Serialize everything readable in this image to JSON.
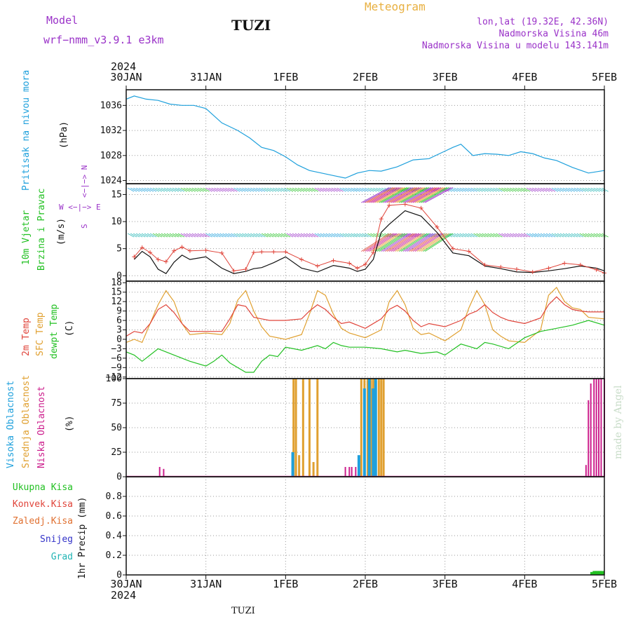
{
  "header": {
    "model_label": "Model",
    "model_name": "wrf−nmm_v3.9.1  e3km",
    "station": "TUZI",
    "title": "Meteogram",
    "coords": "lon,lat (19.32E, 42.36N)",
    "altitude": "Nadmorska Visina 46m",
    "model_altitude": "Nadmorska Visina u modelu 143.141m",
    "credit": "made by Angel",
    "footer_station": "TUZI"
  },
  "time_axis": {
    "year": "2024",
    "ticks": [
      "30JAN",
      "31JAN",
      "1FEB",
      "2FEB",
      "3FEB",
      "4FEB",
      "5FEB"
    ],
    "range_days": [
      0,
      6
    ]
  },
  "colors": {
    "pressure": "#1ea0dc",
    "temp2m": "#e0443a",
    "sfc_temp": "#e0a030",
    "dewpoint": "#22c022",
    "wind_speed": "#111111",
    "wind_gust": "#e0443a",
    "high_cloud": "#1ea0dc",
    "mid_cloud": "#e0a030",
    "low_cloud": "#cc1e8c",
    "precip": "#22c022",
    "grid": "#9a9a9a",
    "label_purple": "#9a32c8",
    "label_gold": "#e8b040"
  },
  "panels": [
    {
      "id": "pressure",
      "labels": [
        "Pritisak na nivou mora"
      ],
      "label_colors": [
        "#1ea0dc"
      ],
      "unit": "(hPa)",
      "ticks": [
        "1036",
        "1032",
        "1028",
        "1024"
      ]
    },
    {
      "id": "wind",
      "labels": [
        "10m Vjetar",
        "Brzina i Pravac"
      ],
      "label_colors": [
        "#22c022",
        "#22c022"
      ],
      "unit": "(m/s)",
      "ticks": [
        "15",
        "10",
        "5",
        "0"
      ],
      "compass": {
        "n": "N",
        "e": "E",
        "w": "W",
        "s": "S",
        "arrow": "<−|−>"
      }
    },
    {
      "id": "temp",
      "labels": [
        "2m Temp",
        "SFC Temp",
        "dewpt Temp"
      ],
      "label_colors": [
        "#e0443a",
        "#e0a030",
        "#22c022"
      ],
      "unit": "(C)",
      "ticks": [
        "18",
        "15",
        "12",
        "9",
        "6",
        "3",
        "0",
        "−3",
        "−6",
        "−9",
        "−12"
      ]
    },
    {
      "id": "cloud",
      "labels": [
        "Visoka Oblacnost",
        "Srednja Oblacnost",
        "Niska Oblacnost"
      ],
      "label_colors": [
        "#1ea0dc",
        "#e0a030",
        "#cc1e8c"
      ],
      "unit": "(%)",
      "ticks": [
        "100",
        "75",
        "50",
        "25",
        "0"
      ]
    },
    {
      "id": "precip",
      "unit": "1hr Precip (mm)",
      "ticks": [
        "0.8",
        "0.6",
        "0.4",
        "0.2",
        "0"
      ],
      "legend": [
        {
          "label": "Ukupna Kisa",
          "color": "#22c022"
        },
        {
          "label": "Konvek.Kisa",
          "color": "#e0443a"
        },
        {
          "label": "Zaledj.Kisa",
          "color": "#e07030"
        },
        {
          "label": "Snijeg",
          "color": "#3232c8"
        },
        {
          "label": "Grad",
          "color": "#20b4b4"
        }
      ]
    }
  ],
  "chart_data": [
    {
      "type": "line",
      "panel": "pressure",
      "x_unit": "days since 30JAN 00UTC",
      "ylim": [
        1023.5,
        1038.5
      ],
      "series": [
        {
          "name": "Pritisak na nivou mora",
          "x": [
            0,
            0.1,
            0.25,
            0.4,
            0.55,
            0.7,
            0.85,
            1.0,
            1.2,
            1.4,
            1.55,
            1.7,
            1.85,
            2.0,
            2.15,
            2.3,
            2.45,
            2.6,
            2.75,
            2.9,
            3.05,
            3.2,
            3.4,
            3.6,
            3.8,
            4.0,
            4.1,
            4.2,
            4.35,
            4.5,
            4.65,
            4.8,
            4.95,
            5.1,
            5.25,
            5.4,
            5.6,
            5.8,
            6.0
          ],
          "y": [
            1037.0,
            1037.5,
            1037.0,
            1036.8,
            1036.2,
            1036.0,
            1036.0,
            1035.5,
            1033.2,
            1032.0,
            1030.8,
            1029.3,
            1028.8,
            1027.8,
            1026.5,
            1025.6,
            1025.2,
            1024.8,
            1024.4,
            1025.2,
            1025.6,
            1025.5,
            1026.2,
            1027.3,
            1027.5,
            1028.7,
            1029.3,
            1029.8,
            1028.0,
            1028.3,
            1028.2,
            1028.0,
            1028.6,
            1028.3,
            1027.6,
            1027.2,
            1026.1,
            1025.2,
            1025.6
          ]
        }
      ]
    },
    {
      "type": "line",
      "panel": "wind",
      "ylim": [
        -1,
        17
      ],
      "series": [
        {
          "name": "speed",
          "x": [
            0.1,
            0.2,
            0.3,
            0.4,
            0.5,
            0.6,
            0.7,
            0.8,
            1.0,
            1.2,
            1.35,
            1.5,
            1.6,
            1.7,
            1.85,
            2.0,
            2.2,
            2.4,
            2.6,
            2.8,
            2.9,
            3.0,
            3.1,
            3.2,
            3.3,
            3.5,
            3.7,
            3.9,
            4.1,
            4.3,
            4.5,
            4.7,
            4.9,
            5.1,
            5.3,
            5.5,
            5.7,
            5.9,
            6.0
          ],
          "y": [
            3.0,
            4.5,
            3.5,
            1.2,
            0.4,
            2.5,
            3.8,
            3.0,
            3.5,
            1.4,
            0.4,
            0.8,
            1.3,
            1.5,
            2.4,
            3.5,
            1.4,
            0.7,
            1.9,
            1.4,
            0.8,
            1.2,
            3.0,
            8.0,
            9.5,
            12.0,
            11.0,
            8.0,
            4.2,
            3.7,
            1.8,
            1.3,
            0.7,
            0.6,
            0.9,
            1.3,
            1.8,
            1.4,
            0.9
          ]
        },
        {
          "name": "gust",
          "x": [
            0.1,
            0.2,
            0.3,
            0.4,
            0.5,
            0.6,
            0.7,
            0.8,
            1.0,
            1.2,
            1.35,
            1.5,
            1.6,
            1.7,
            1.85,
            2.0,
            2.2,
            2.4,
            2.6,
            2.8,
            2.9,
            3.0,
            3.1,
            3.2,
            3.3,
            3.5,
            3.7,
            3.9,
            4.1,
            4.3,
            4.5,
            4.7,
            4.9,
            5.1,
            5.3,
            5.5,
            5.7,
            5.9,
            6.0
          ],
          "y": [
            3.5,
            5.2,
            4.3,
            3.0,
            2.6,
            4.6,
            5.3,
            4.6,
            4.7,
            4.2,
            0.9,
            1.2,
            4.3,
            4.4,
            4.4,
            4.4,
            3.0,
            1.8,
            2.8,
            2.3,
            1.4,
            2.1,
            4.3,
            10.5,
            13.0,
            13.2,
            12.5,
            9.0,
            5.0,
            4.5,
            2.0,
            1.6,
            1.2,
            0.7,
            1.4,
            2.3,
            2.0,
            1.1,
            0.5
          ]
        }
      ]
    },
    {
      "type": "line",
      "panel": "temp",
      "ylim": [
        -12.5,
        18.5
      ],
      "series": [
        {
          "name": "2m Temp",
          "x": [
            0,
            0.1,
            0.2,
            0.3,
            0.4,
            0.5,
            0.6,
            0.7,
            0.8,
            1.0,
            1.2,
            1.3,
            1.4,
            1.5,
            1.6,
            1.7,
            1.8,
            2.0,
            2.2,
            2.3,
            2.4,
            2.5,
            2.6,
            2.7,
            2.8,
            3.0,
            3.2,
            3.3,
            3.4,
            3.5,
            3.6,
            3.7,
            3.8,
            4.0,
            4.2,
            4.3,
            4.4,
            4.5,
            4.6,
            4.7,
            4.8,
            5.0,
            5.2,
            5.3,
            5.4,
            5.5,
            5.6,
            5.7,
            5.8,
            6.0
          ],
          "y": [
            1.0,
            2.5,
            2.0,
            5.0,
            9.5,
            11.0,
            8.5,
            5.0,
            2.5,
            2.5,
            2.5,
            6.5,
            11.0,
            10.5,
            7.0,
            6.5,
            6.0,
            6.0,
            6.5,
            9.0,
            11.0,
            9.5,
            7.0,
            5.0,
            5.5,
            3.5,
            6.5,
            9.5,
            10.8,
            9.0,
            6.0,
            4.0,
            5.0,
            4.0,
            6.0,
            8.0,
            9.0,
            11.0,
            8.5,
            7.0,
            6.0,
            5.0,
            6.8,
            11.0,
            13.5,
            11.0,
            9.5,
            9.0,
            8.7,
            8.7
          ]
        },
        {
          "name": "SFC Temp",
          "x": [
            0,
            0.1,
            0.2,
            0.3,
            0.4,
            0.5,
            0.6,
            0.7,
            0.8,
            1.0,
            1.2,
            1.3,
            1.4,
            1.5,
            1.6,
            1.7,
            1.8,
            2.0,
            2.2,
            2.3,
            2.4,
            2.5,
            2.6,
            2.7,
            2.8,
            3.0,
            3.2,
            3.3,
            3.4,
            3.5,
            3.6,
            3.7,
            3.8,
            4.0,
            4.2,
            4.3,
            4.4,
            4.5,
            4.6,
            4.7,
            4.8,
            5.0,
            5.2,
            5.3,
            5.4,
            5.5,
            5.6,
            5.7,
            5.8,
            6.0
          ],
          "y": [
            -1.0,
            0.0,
            -1.0,
            5.0,
            11.0,
            15.5,
            12.0,
            5.0,
            1.5,
            2.0,
            1.5,
            5.0,
            12.5,
            15.5,
            9.0,
            4.0,
            1.0,
            0.0,
            1.5,
            8.0,
            15.5,
            14.0,
            8.0,
            3.5,
            2.0,
            0.5,
            3.0,
            12.0,
            15.5,
            11.0,
            3.5,
            1.5,
            2.0,
            -0.5,
            3.0,
            10.0,
            15.5,
            11.0,
            3.0,
            1.0,
            -0.5,
            -1.0,
            3.0,
            14.0,
            16.5,
            12.0,
            10.0,
            9.5,
            7.0,
            6.5
          ]
        },
        {
          "name": "dewpt Temp",
          "x": [
            0,
            0.1,
            0.2,
            0.3,
            0.4,
            0.5,
            0.6,
            0.7,
            0.8,
            1.0,
            1.1,
            1.2,
            1.3,
            1.5,
            1.6,
            1.7,
            1.8,
            1.9,
            2.0,
            2.2,
            2.4,
            2.5,
            2.6,
            2.7,
            2.8,
            3.0,
            3.2,
            3.4,
            3.5,
            3.7,
            3.9,
            4.0,
            4.2,
            4.4,
            4.5,
            4.6,
            4.8,
            5.0,
            5.2,
            5.4,
            5.6,
            5.8,
            6.0
          ],
          "y": [
            -4.0,
            -5.0,
            -7.0,
            -5.0,
            -3.0,
            -4.0,
            -5.0,
            -6.0,
            -7.0,
            -8.5,
            -7.0,
            -5.0,
            -7.5,
            -10.5,
            -10.5,
            -7.0,
            -5.0,
            -5.5,
            -2.5,
            -3.5,
            -2.0,
            -3.0,
            -1.0,
            -2.0,
            -2.5,
            -2.5,
            -3.0,
            -4.0,
            -3.5,
            -4.5,
            -4.0,
            -5.0,
            -1.5,
            -3.0,
            -1.0,
            -1.5,
            -3.0,
            0.5,
            2.5,
            3.5,
            4.5,
            6.0,
            4.5
          ]
        }
      ]
    },
    {
      "type": "bar",
      "panel": "cloud",
      "ylim": [
        0,
        100
      ],
      "x_unit": "days since 30JAN 00UTC",
      "series": [
        {
          "name": "Niska Oblacnost",
          "x": [
            0.42,
            0.47,
            2.75,
            2.8,
            2.83,
            2.88,
            5.77,
            5.8,
            5.83,
            5.87,
            5.9,
            5.93,
            5.96,
            6.0
          ],
          "y": [
            10,
            8,
            10,
            10,
            10,
            10,
            12,
            78,
            95,
            100,
            100,
            100,
            100,
            100
          ]
        },
        {
          "name": "Srednja Oblacnost",
          "x": [
            2.1,
            2.13,
            2.17,
            2.22,
            2.3,
            2.35,
            2.4,
            2.95,
            2.99,
            3.03,
            3.07,
            3.1,
            3.13,
            3.17,
            3.2,
            3.23
          ],
          "y": [
            100,
            100,
            22,
            100,
            100,
            15,
            100,
            100,
            100,
            100,
            100,
            100,
            100,
            100,
            100,
            100
          ]
        },
        {
          "name": "Visoka Oblacnost",
          "x": [
            2.09,
            2.92,
            2.99,
            3.05,
            3.1,
            3.13
          ],
          "y": [
            25,
            22,
            90,
            100,
            90,
            100
          ]
        }
      ]
    },
    {
      "type": "bar",
      "panel": "precip",
      "ylim": [
        0,
        1.0
      ],
      "series": [
        {
          "name": "Ukupna Kisa",
          "x": [
            5.85,
            5.88,
            5.91,
            5.94,
            5.97
          ],
          "y": [
            0.03,
            0.04,
            0.04,
            0.04,
            0.04
          ]
        }
      ]
    }
  ]
}
